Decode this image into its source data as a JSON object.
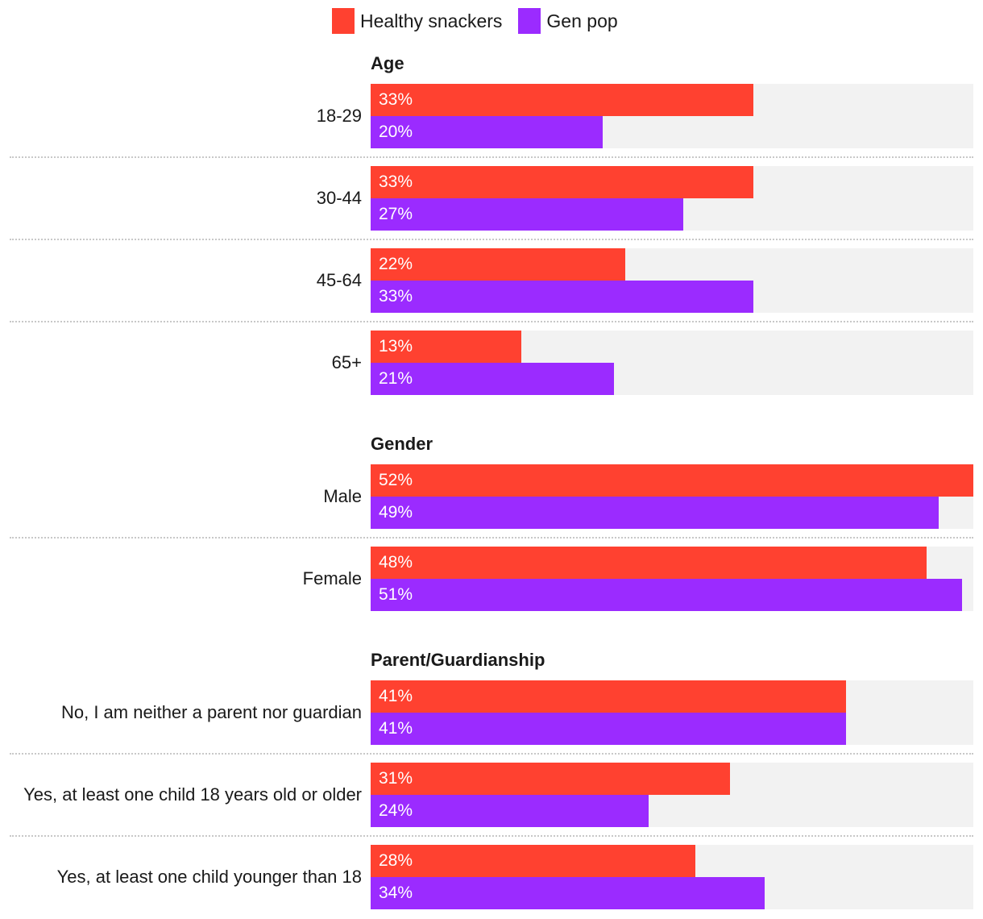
{
  "colors": {
    "healthy": "#ff4130",
    "genpop": "#9b2bff",
    "track": "#f2f2f2"
  },
  "chart_data": {
    "type": "bar",
    "orientation": "horizontal",
    "value_suffix": "%",
    "xlim": [
      0,
      52
    ],
    "legend": [
      {
        "name": "Healthy snackers",
        "color": "#ff4130"
      },
      {
        "name": "Gen pop",
        "color": "#9b2bff"
      }
    ],
    "legend_position": "top",
    "grid": false,
    "groups": [
      {
        "title": "Age",
        "rows": [
          {
            "label": "18-29",
            "values": [
              33,
              20
            ]
          },
          {
            "label": "30-44",
            "values": [
              33,
              27
            ]
          },
          {
            "label": "45-64",
            "values": [
              22,
              33
            ]
          },
          {
            "label": "65+",
            "values": [
              13,
              21
            ]
          }
        ]
      },
      {
        "title": "Gender",
        "rows": [
          {
            "label": "Male",
            "values": [
              52,
              49
            ]
          },
          {
            "label": "Female",
            "values": [
              48,
              51
            ]
          }
        ]
      },
      {
        "title": "Parent/Guardianship",
        "rows": [
          {
            "label": "No, I am neither a parent nor guardian",
            "values": [
              41,
              41
            ]
          },
          {
            "label": "Yes, at least one child 18 years old or older",
            "values": [
              31,
              24
            ]
          },
          {
            "label": "Yes, at least one child younger than 18",
            "values": [
              28,
              34
            ]
          }
        ]
      }
    ]
  }
}
